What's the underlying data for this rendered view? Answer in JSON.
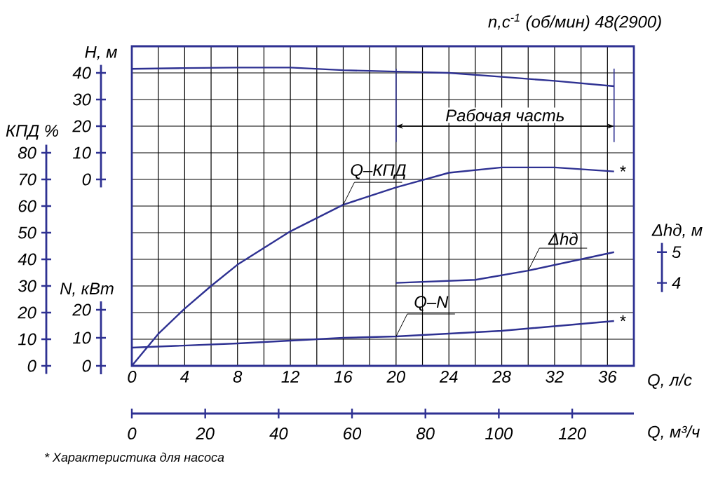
{
  "chart_data": [
    {
      "type": "line",
      "subtitle": "n,c$^{-1}$ (об/мин) 48(2900)",
      "xlabel": "Q, л/с",
      "x2label": "Q, м³/ч",
      "ylabel": "H, м",
      "y2label": "КПД %",
      "y3label": "N, кВт",
      "xlim": [
        0,
        38
      ],
      "xticks": [
        0,
        4,
        8,
        12,
        16,
        20,
        24,
        28,
        32,
        36
      ],
      "x2lim": [
        0,
        136.8
      ],
      "x2ticks": [
        0,
        20,
        40,
        60,
        80,
        100,
        120
      ],
      "ylim": [
        -70,
        50
      ],
      "yticks": [
        0,
        10,
        20,
        30,
        40
      ],
      "y2lim": [
        0,
        120
      ],
      "y2ticks": [
        0,
        10,
        20,
        30,
        40,
        50,
        60,
        70,
        80
      ],
      "y3lim": [
        0,
        114
      ],
      "y3ticks": [
        0,
        10,
        20
      ],
      "grid": true,
      "series": [
        {
          "axis": "y",
          "color": "#2e3192",
          "x": [
            0,
            4,
            8,
            12,
            16,
            20,
            24,
            28,
            32,
            36.5
          ],
          "values": [
            41.5,
            41.8,
            42,
            42,
            41,
            40.5,
            40,
            38.5,
            37,
            35
          ]
        },
        {
          "name": "Q–КПД",
          "axis": "y2",
          "color": "#2e3192",
          "x": [
            0,
            2,
            4,
            6,
            8,
            12,
            16,
            20,
            24,
            28,
            32,
            36.5
          ],
          "values": [
            0,
            12,
            21.5,
            30,
            38,
            50.5,
            60.5,
            67,
            72.5,
            74.5,
            74.5,
            73
          ]
        },
        {
          "name": "Q–N",
          "axis": "y3",
          "color": "#2e3192",
          "x": [
            0,
            8,
            16,
            20,
            28,
            36.5
          ],
          "values": [
            6.5,
            8,
            10,
            10.5,
            12.5,
            16
          ]
        }
      ],
      "ref_lines": [
        {
          "axis": "x",
          "value": 20,
          "label": "Рабочая часть",
          "color": "#2e3192"
        },
        {
          "axis": "x",
          "value": 36.5,
          "color": "#2e3192"
        }
      ],
      "annotations": [
        "*",
        "*",
        "* Характеристика для насоса"
      ]
    },
    {
      "type": "line",
      "tick_labels": "y",
      "ylabel": "Δhд, м",
      "xlim": [
        0,
        38
      ],
      "ylim": [
        1.3,
        11.7
      ],
      "yticks": [
        4,
        5
      ],
      "series": [
        {
          "name": "Δhд",
          "color": "#2e3192",
          "x": [
            20,
            26,
            30,
            36.5
          ],
          "values": [
            4.0,
            4.1,
            4.4,
            5.0
          ]
        }
      ]
    }
  ]
}
